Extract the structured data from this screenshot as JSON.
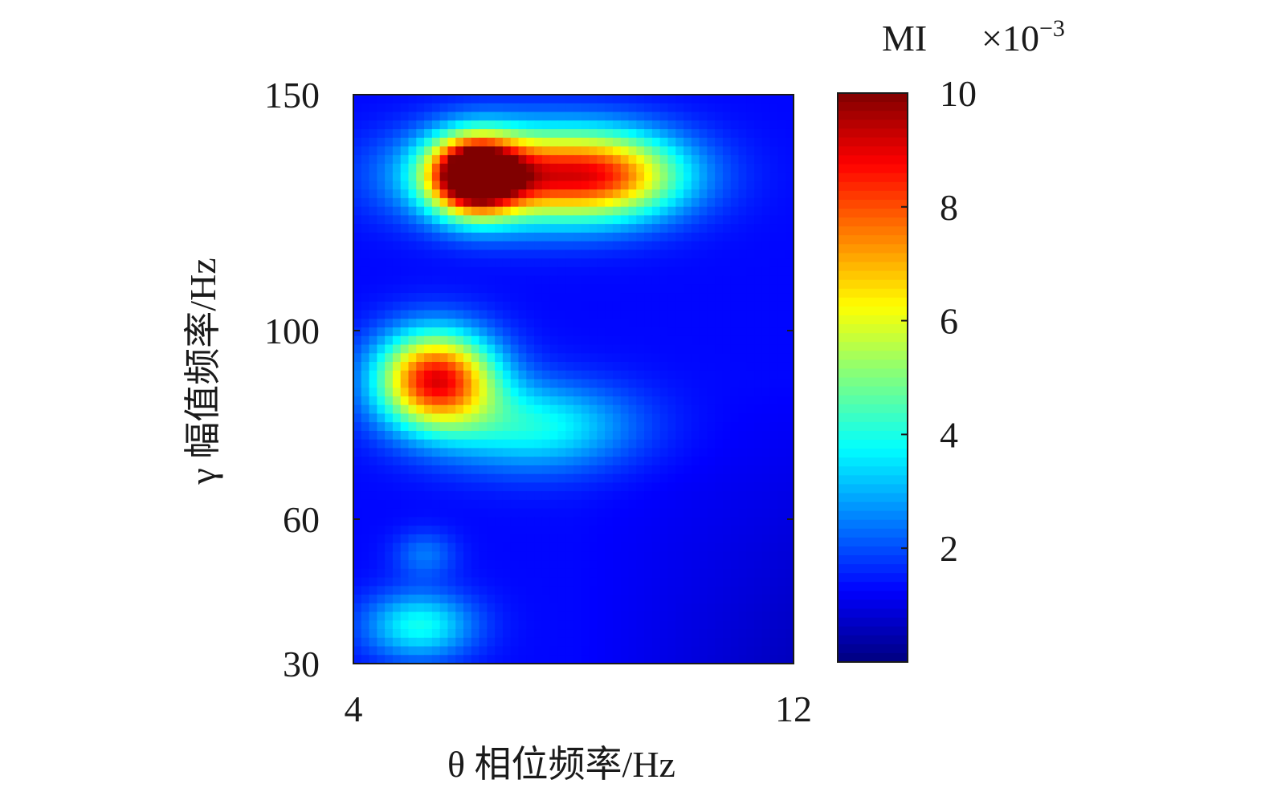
{
  "chart_data": {
    "type": "heatmap",
    "title": "",
    "xlabel": "θ 相位频率/Hz",
    "ylabel": "γ 幅值频率/Hz",
    "xlim": [
      4,
      12
    ],
    "ylim": [
      30,
      150
    ],
    "x_ticks": [
      4,
      12
    ],
    "x_tick_labels": [
      "4",
      "12"
    ],
    "y_ticks": [
      30,
      60,
      100,
      150
    ],
    "y_tick_labels": [
      "30",
      "60",
      "100",
      "150"
    ],
    "grid": false,
    "colormap": "jet",
    "colorbar": {
      "label": "MI",
      "multiplier": "×10",
      "multiplier_exponent": "−3",
      "range": [
        0,
        10
      ],
      "ticks": [
        2,
        4,
        6,
        8,
        10
      ],
      "tick_labels": [
        "2",
        "4",
        "6",
        "8",
        "10"
      ]
    },
    "value_unit_scale": 0.001,
    "background_level": 1.3,
    "blobs": [
      {
        "name": "high-gamma-peak",
        "x": 6.2,
        "y": 133,
        "sx": 0.55,
        "sy": 5.5,
        "amp": 8.6
      },
      {
        "name": "high-gamma-band",
        "x": 7.4,
        "y": 133,
        "sx": 1.5,
        "sy": 6.8,
        "amp": 6.6
      },
      {
        "name": "high-gamma-tail",
        "x": 8.8,
        "y": 133,
        "sx": 0.9,
        "sy": 6.2,
        "amp": 2.6
      },
      {
        "name": "mid-gamma-peak",
        "x": 5.5,
        "y": 90,
        "sx": 0.75,
        "sy": 7.0,
        "amp": 7.5
      },
      {
        "name": "mid-gamma-tail",
        "x": 7.3,
        "y": 80,
        "sx": 1.25,
        "sy": 6.5,
        "amp": 2.6
      },
      {
        "name": "low-gamma-spot",
        "x": 5.2,
        "y": 38,
        "sx": 0.7,
        "sy": 5.0,
        "amp": 2.6
      },
      {
        "name": "low-gamma-faint",
        "x": 5.3,
        "y": 53,
        "sx": 0.4,
        "sy": 3.5,
        "amp": 1.1
      }
    ]
  }
}
